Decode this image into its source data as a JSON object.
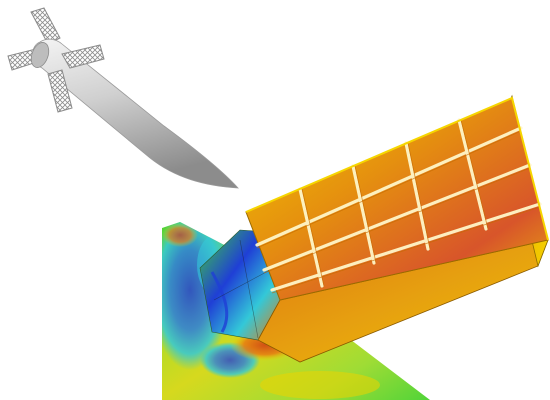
{
  "figure": {
    "background": "#ffffff",
    "palette": {
      "body_light": "#eeeeee",
      "body_mid": "#c2c2c2",
      "body_dark": "#8a8a8a",
      "lattice_line": "#8c8c8c",
      "contour_blue": "#1f3fd6",
      "contour_cyan": "#33c8d8",
      "contour_green": "#3fd23a",
      "contour_yellow": "#ecd400",
      "contour_orange": "#e87a10",
      "contour_red": "#d23812"
    },
    "icons": {
      "projectile": "missile-with-grid-fins-icon",
      "fin": "grid-fin-icon"
    }
  }
}
